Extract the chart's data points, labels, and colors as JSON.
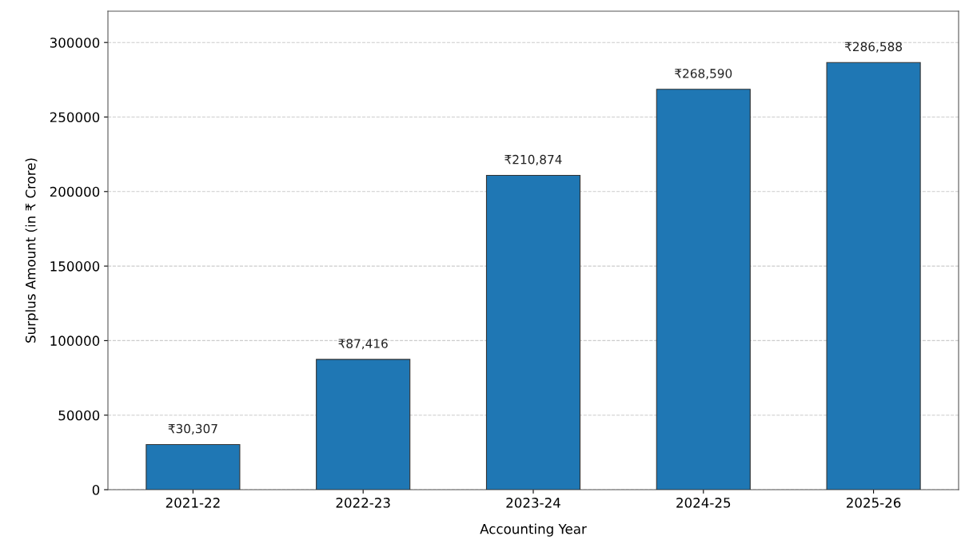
{
  "chart_data": {
    "type": "bar",
    "xlabel": "Accounting Year",
    "ylabel": "Surplus Amount (in ₹ Crore)",
    "categories": [
      "2021-22",
      "2022-23",
      "2023-24",
      "2024-25",
      "2025-26"
    ],
    "values": [
      30307,
      87416,
      210874,
      268590,
      286588
    ],
    "value_labels": [
      "₹30,307",
      "₹87,416",
      "₹210,874",
      "₹268,590",
      "₹286,588"
    ],
    "color": "#1f77b4",
    "ylim": [
      0,
      321000
    ],
    "yticks": [
      0,
      50000,
      100000,
      150000,
      200000,
      250000,
      300000
    ],
    "grid": "y"
  }
}
